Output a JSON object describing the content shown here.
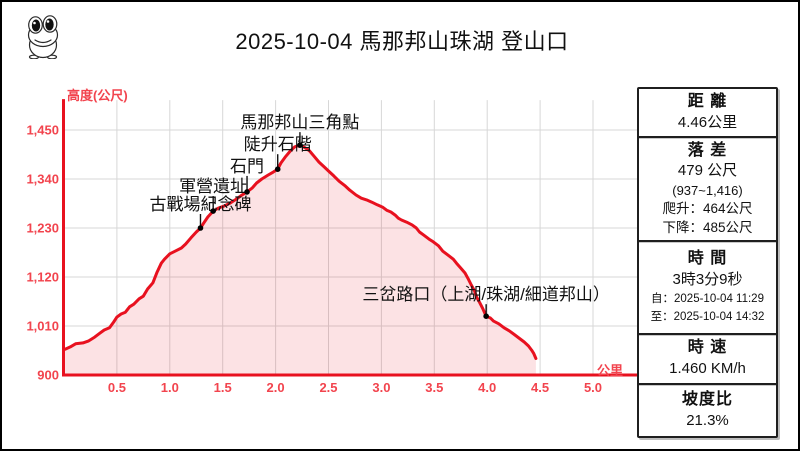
{
  "header": {
    "title": "2025-10-04 馬那邦山珠湖 登山口",
    "mascot_icon": "frog"
  },
  "chart_data": {
    "type": "area",
    "title": "",
    "xlabel": "公里",
    "ylabel": "高度(公尺)",
    "x_ticks": [
      0.5,
      1.0,
      1.5,
      2.0,
      2.5,
      3.0,
      3.5,
      4.0,
      4.5,
      5.0
    ],
    "x_tick_labels": [
      "0.5",
      "1.0",
      "1.5",
      "2.0",
      "2.5",
      "3.0",
      "3.5",
      "4.0",
      "4.5",
      "5.0"
    ],
    "y_ticks": [
      900,
      1010,
      1120,
      1230,
      1340,
      1450
    ],
    "y_tick_labels": [
      "900",
      "1,010",
      "1,120",
      "1,230",
      "1,340",
      "1,450"
    ],
    "xlim": [
      0,
      5.43
    ],
    "ylim": [
      900,
      1517
    ],
    "grid": true,
    "legend": "none",
    "colors": {
      "line": "#e8111f",
      "fill": "rgba(232,17,31,0.12)",
      "tick_label": "#f2444e",
      "grid": "#d7d7d7",
      "annotation": "#111111"
    },
    "series": [
      {
        "name": "elevation-profile",
        "points": [
          [
            0.01,
            958
          ],
          [
            0.06,
            963
          ],
          [
            0.11,
            970
          ],
          [
            0.18,
            972
          ],
          [
            0.23,
            976
          ],
          [
            0.29,
            985
          ],
          [
            0.34,
            994
          ],
          [
            0.38,
            1001
          ],
          [
            0.43,
            1006
          ],
          [
            0.47,
            1019
          ],
          [
            0.5,
            1030
          ],
          [
            0.54,
            1037
          ],
          [
            0.58,
            1041
          ],
          [
            0.62,
            1053
          ],
          [
            0.66,
            1059
          ],
          [
            0.71,
            1071
          ],
          [
            0.75,
            1077
          ],
          [
            0.79,
            1093
          ],
          [
            0.84,
            1107
          ],
          [
            0.88,
            1131
          ],
          [
            0.92,
            1151
          ],
          [
            0.95,
            1160
          ],
          [
            1.0,
            1172
          ],
          [
            1.05,
            1178
          ],
          [
            1.11,
            1185
          ],
          [
            1.15,
            1194
          ],
          [
            1.2,
            1208
          ],
          [
            1.25,
            1221
          ],
          [
            1.29,
            1230
          ],
          [
            1.32,
            1241
          ],
          [
            1.36,
            1255
          ],
          [
            1.41,
            1268
          ],
          [
            1.46,
            1275
          ],
          [
            1.51,
            1279
          ],
          [
            1.57,
            1286
          ],
          [
            1.63,
            1295
          ],
          [
            1.67,
            1302
          ],
          [
            1.73,
            1311
          ],
          [
            1.78,
            1320
          ],
          [
            1.82,
            1331
          ],
          [
            1.87,
            1340
          ],
          [
            1.93,
            1349
          ],
          [
            1.98,
            1356
          ],
          [
            2.02,
            1362
          ],
          [
            2.05,
            1376
          ],
          [
            2.09,
            1389
          ],
          [
            2.14,
            1403
          ],
          [
            2.18,
            1412
          ],
          [
            2.23,
            1416
          ],
          [
            2.28,
            1410
          ],
          [
            2.32,
            1403
          ],
          [
            2.36,
            1392
          ],
          [
            2.41,
            1378
          ],
          [
            2.46,
            1367
          ],
          [
            2.5,
            1358
          ],
          [
            2.55,
            1347
          ],
          [
            2.6,
            1335
          ],
          [
            2.66,
            1324
          ],
          [
            2.7,
            1315
          ],
          [
            2.76,
            1304
          ],
          [
            2.81,
            1297
          ],
          [
            2.86,
            1293
          ],
          [
            2.91,
            1288
          ],
          [
            2.96,
            1282
          ],
          [
            3.01,
            1277
          ],
          [
            3.05,
            1270
          ],
          [
            3.09,
            1266
          ],
          [
            3.13,
            1259
          ],
          [
            3.16,
            1252
          ],
          [
            3.19,
            1248
          ],
          [
            3.24,
            1243
          ],
          [
            3.29,
            1237
          ],
          [
            3.33,
            1230
          ],
          [
            3.36,
            1221
          ],
          [
            3.4,
            1214
          ],
          [
            3.45,
            1205
          ],
          [
            3.49,
            1199
          ],
          [
            3.54,
            1190
          ],
          [
            3.58,
            1178
          ],
          [
            3.63,
            1169
          ],
          [
            3.68,
            1160
          ],
          [
            3.71,
            1151
          ],
          [
            3.75,
            1140
          ],
          [
            3.79,
            1129
          ],
          [
            3.82,
            1116
          ],
          [
            3.85,
            1102
          ],
          [
            3.88,
            1089
          ],
          [
            3.9,
            1075
          ],
          [
            3.93,
            1062
          ],
          [
            3.96,
            1048
          ],
          [
            3.99,
            1032
          ],
          [
            4.03,
            1028
          ],
          [
            4.06,
            1021
          ],
          [
            4.11,
            1015
          ],
          [
            4.16,
            1006
          ],
          [
            4.21,
            999
          ],
          [
            4.25,
            992
          ],
          [
            4.3,
            983
          ],
          [
            4.35,
            974
          ],
          [
            4.39,
            965
          ],
          [
            4.42,
            956
          ],
          [
            4.44,
            948
          ],
          [
            4.46,
            937
          ]
        ]
      }
    ],
    "annotations": [
      {
        "label": "古戰場紀念碑",
        "km": 1.29,
        "elev": 1230,
        "gap": 15
      },
      {
        "label": "軍營遺址",
        "km": 1.41,
        "elev": 1268,
        "gap": 16
      },
      {
        "label": "石門",
        "km": 1.73,
        "elev": 1311,
        "gap": 17
      },
      {
        "label": "陡升石階",
        "km": 2.02,
        "elev": 1362,
        "gap": 16
      },
      {
        "label": "馬那邦山三角點",
        "km": 2.23,
        "elev": 1416,
        "gap": 14
      },
      {
        "label": "三岔路口（上湖/珠湖/細道邦山）",
        "km": 3.99,
        "elev": 1032,
        "gap": 13
      }
    ]
  },
  "stats_panel": {
    "sections": [
      {
        "heading": "距 離",
        "lines": [
          {
            "text": "4.46公里",
            "cls": "value"
          }
        ]
      },
      {
        "heading": "落 差",
        "lines": [
          {
            "text": "479 公尺",
            "cls": "value"
          },
          {
            "text": "(937~1,416)",
            "cls": "sub"
          },
          {
            "text": "爬升：464公尺",
            "cls": "detail"
          },
          {
            "text": "下降：485公尺",
            "cls": "detail"
          }
        ]
      },
      {
        "heading": "時 間",
        "lines": [
          {
            "text": "3時3分9秒",
            "cls": "value"
          },
          {
            "text": "自：2025-10-04 11:29",
            "cls": "tiny"
          },
          {
            "text": "至：2025-10-04 14:32",
            "cls": "tiny"
          }
        ]
      },
      {
        "heading": "時 速",
        "lines": [
          {
            "text": "1.460 KM/h",
            "cls": "value"
          }
        ]
      },
      {
        "heading": "坡度比",
        "lines": [
          {
            "text": "21.3%",
            "cls": "value"
          }
        ]
      }
    ]
  }
}
